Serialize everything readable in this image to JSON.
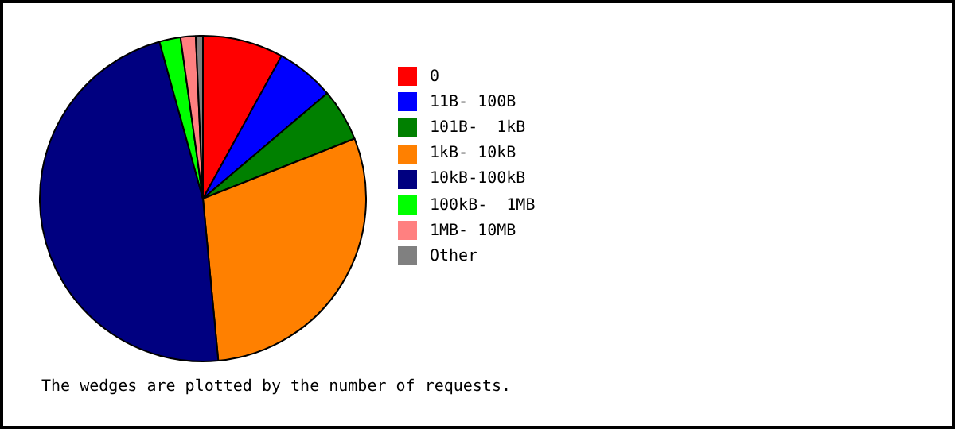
{
  "chart_data": {
    "type": "pie",
    "categories": [
      "0",
      "11B- 100B",
      "101B-  1kB",
      "1kB- 10kB",
      "10kB-100kB",
      "100kB-  1MB",
      "1MB- 10MB",
      "Other"
    ],
    "values": [
      8.0,
      5.8,
      5.2,
      29.5,
      47.2,
      2.1,
      1.5,
      0.7
    ],
    "colors": [
      "#ff0000",
      "#0000ff",
      "#008000",
      "#ff8000",
      "#000080",
      "#00ff00",
      "#ff8080",
      "#808080"
    ],
    "legend": "right",
    "annotations": [
      "The wedges are plotted by the number of requests."
    ]
  }
}
